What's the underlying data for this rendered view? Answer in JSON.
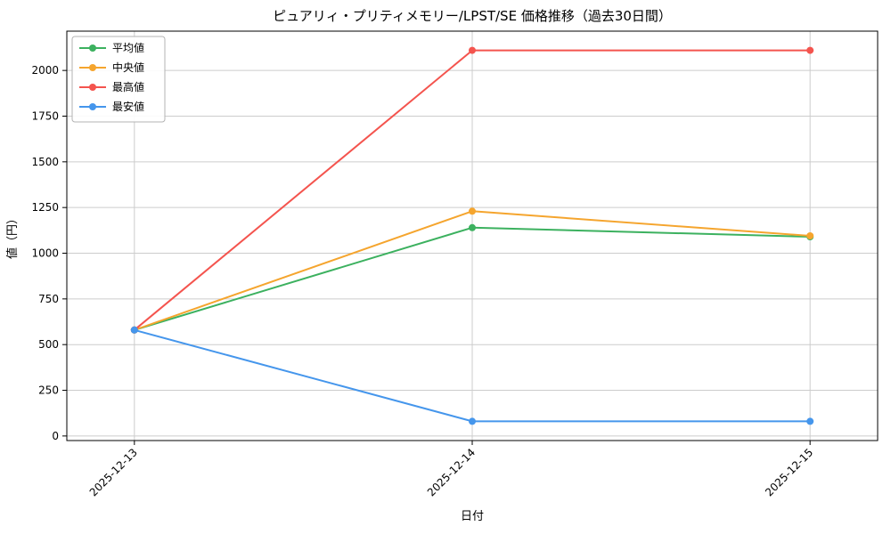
{
  "figure": {
    "background": "#ffffff"
  },
  "chart_data": {
    "type": "line",
    "title": "ピュアリィ・プリティメモリー/LPST/SE 価格推移（過去30日間）",
    "xlabel": "日付",
    "ylabel": "値（円）",
    "categories": [
      "2025-12-13",
      "2025-12-14",
      "2025-12-15"
    ],
    "series": [
      {
        "name": "平均値",
        "color": "#3cb15f",
        "values": [
          580,
          1140,
          1090
        ]
      },
      {
        "name": "中央値",
        "color": "#f5a52e",
        "values": [
          580,
          1230,
          1095
        ]
      },
      {
        "name": "最高値",
        "color": "#f4544e",
        "values": [
          580,
          2110,
          2110
        ]
      },
      {
        "name": "最安値",
        "color": "#4596ec",
        "values": [
          580,
          80,
          80
        ]
      }
    ],
    "yticks": [
      0,
      250,
      500,
      750,
      1000,
      1250,
      1500,
      1750,
      2000
    ],
    "ylim": [
      -25,
      2215
    ],
    "grid": true,
    "legend_position": "upper left",
    "marker": "circle",
    "x_tick_rotation": 45
  },
  "style": {
    "grid_color": "#cccccc",
    "axes_color": "#000000",
    "legend_border": "#b3b3b3",
    "legend_background": "#ffffff",
    "line_width": 2,
    "marker_radius": 4
  }
}
